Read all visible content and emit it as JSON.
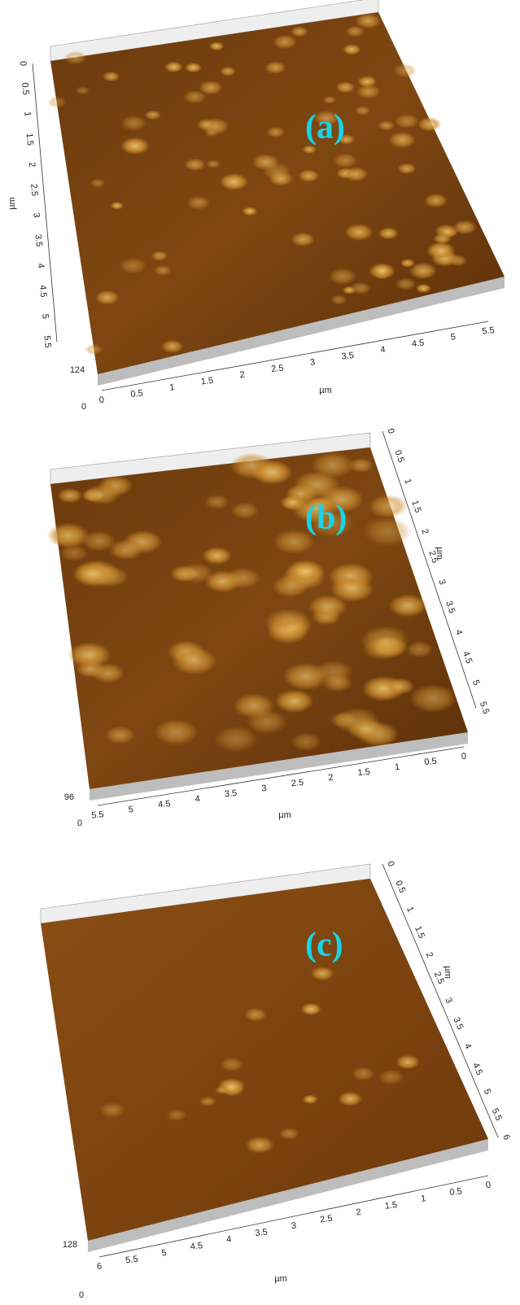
{
  "panels": [
    {
      "label": "(a)",
      "z_max": "124",
      "z_min": "0",
      "axis_1": {
        "unit": "µm",
        "ticks": [
          "0",
          "0.5",
          "1",
          "1.5",
          "2",
          "2.5",
          "3",
          "3.5",
          "4",
          "4.5",
          "5",
          "5.5"
        ]
      },
      "axis_2": {
        "unit": "µm",
        "ticks": [
          "0",
          "0.5",
          "1",
          "1.5",
          "2",
          "2.5",
          "3",
          "3.5",
          "4",
          "4.5",
          "5",
          "5.5"
        ]
      }
    },
    {
      "label": "(b)",
      "z_max": "96",
      "z_min": "0",
      "axis_1": {
        "unit": "µm",
        "ticks": [
          "0",
          "0.5",
          "1",
          "1.5",
          "2",
          "2.5",
          "3",
          "3.5",
          "4",
          "4.5",
          "5",
          "5.5"
        ]
      },
      "axis_2": {
        "unit": "µm",
        "ticks": [
          "5.5",
          "5",
          "4.5",
          "4",
          "3.5",
          "3",
          "2.5",
          "2",
          "1.5",
          "1",
          "0.5",
          "0"
        ]
      }
    },
    {
      "label": "(c)",
      "z_max": "128",
      "z_min": "0",
      "axis_1": {
        "unit": "µm",
        "ticks": [
          "0",
          "0.5",
          "1",
          "1.5",
          "2",
          "2.5",
          "3",
          "3.5",
          "4",
          "4.5",
          "5",
          "5.5",
          "6"
        ]
      },
      "axis_2": {
        "unit": "µm",
        "ticks": [
          "6",
          "5.5",
          "5",
          "4.5",
          "4",
          "3.5",
          "3",
          "2.5",
          "2",
          "1.5",
          "1",
          "0.5",
          "0"
        ]
      }
    }
  ]
}
